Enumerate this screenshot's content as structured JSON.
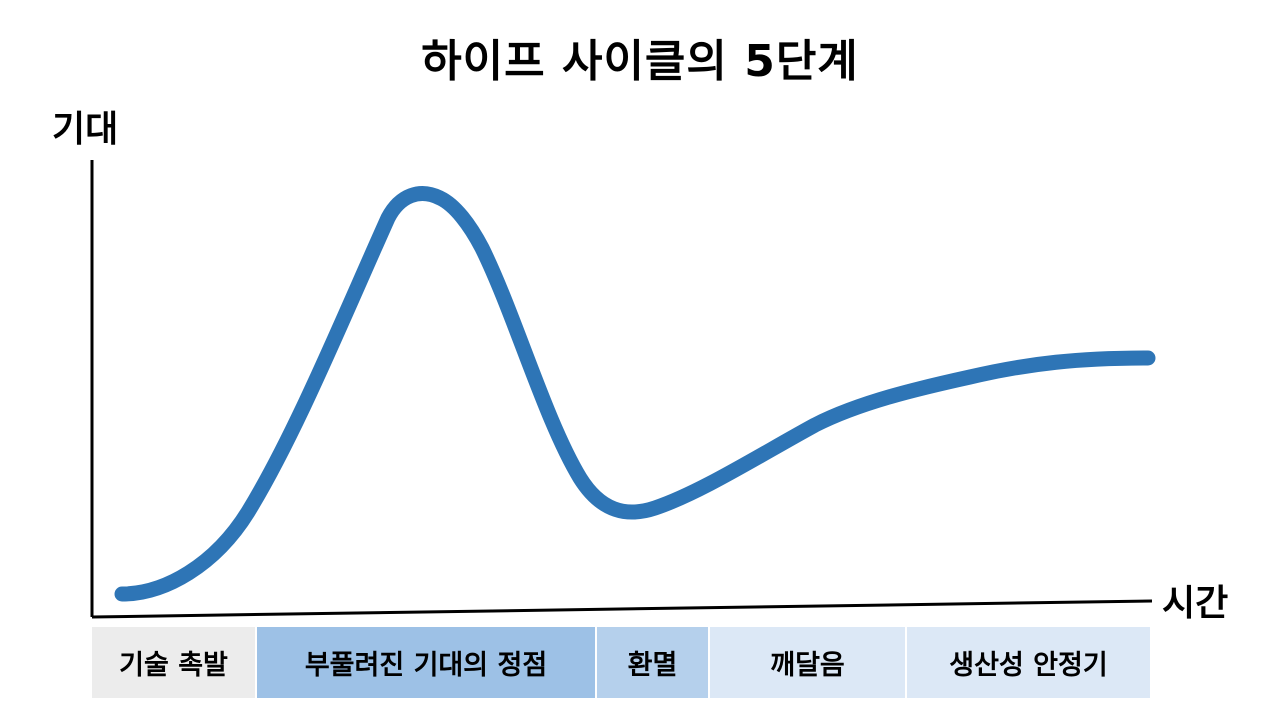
{
  "title": "하이프 사이클의 5단계",
  "y_axis_label": "기대",
  "x_axis_label": "시간",
  "curve_color": "#2e75b6",
  "phases": [
    {
      "label": "기술 촉발",
      "color": "#ececec"
    },
    {
      "label": "부풀려진 기대의 정점",
      "color": "#9dc1e6"
    },
    {
      "label": "환멸",
      "color": "#b5d0ec"
    },
    {
      "label": "깨달음",
      "color": "#dce8f6"
    },
    {
      "label": "생산성 안정기",
      "color": "#dce8f6"
    }
  ]
}
